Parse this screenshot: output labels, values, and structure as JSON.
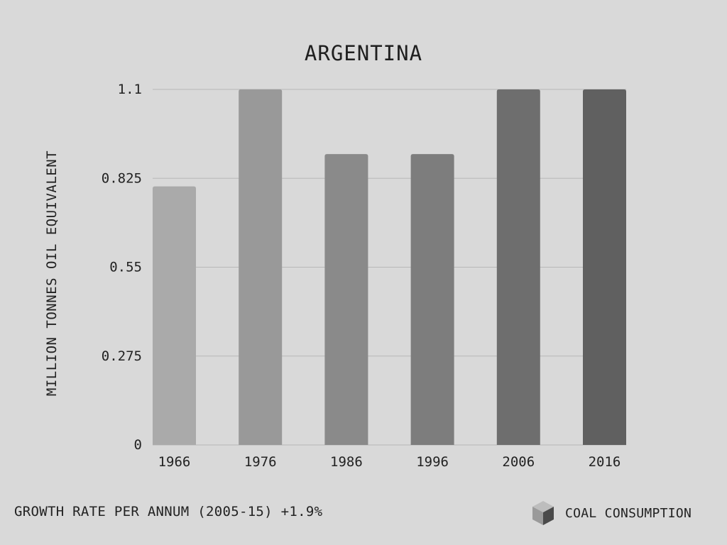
{
  "chart_data": {
    "type": "bar",
    "title": "ARGENTINA",
    "xlabel": "",
    "ylabel": "MILLION TONNES OIL EQUIVALENT",
    "categories": [
      "1966",
      "1976",
      "1986",
      "1996",
      "2006",
      "2016"
    ],
    "values": [
      0.8,
      1.1,
      0.9,
      0.9,
      1.1,
      1.1
    ],
    "ylim": [
      0,
      1.1
    ],
    "yticks": [
      "0",
      "0.275",
      "0.55",
      "0.825",
      "1.1"
    ],
    "grid": true,
    "bar_colors": [
      "#aaaaaa",
      "#999999",
      "#8a8a8a",
      "#7d7d7d",
      "#6e6e6e",
      "#606060"
    ]
  },
  "footer": {
    "growth_rate": "GROWTH RATE PER ANNUM (2005-15) +1.9%"
  },
  "legend": {
    "label": "COAL CONSUMPTION",
    "icon": "cube-icon"
  },
  "colors": {
    "background": "#d9d9d9",
    "gridline": "#b8b8b8",
    "text": "#222222"
  }
}
